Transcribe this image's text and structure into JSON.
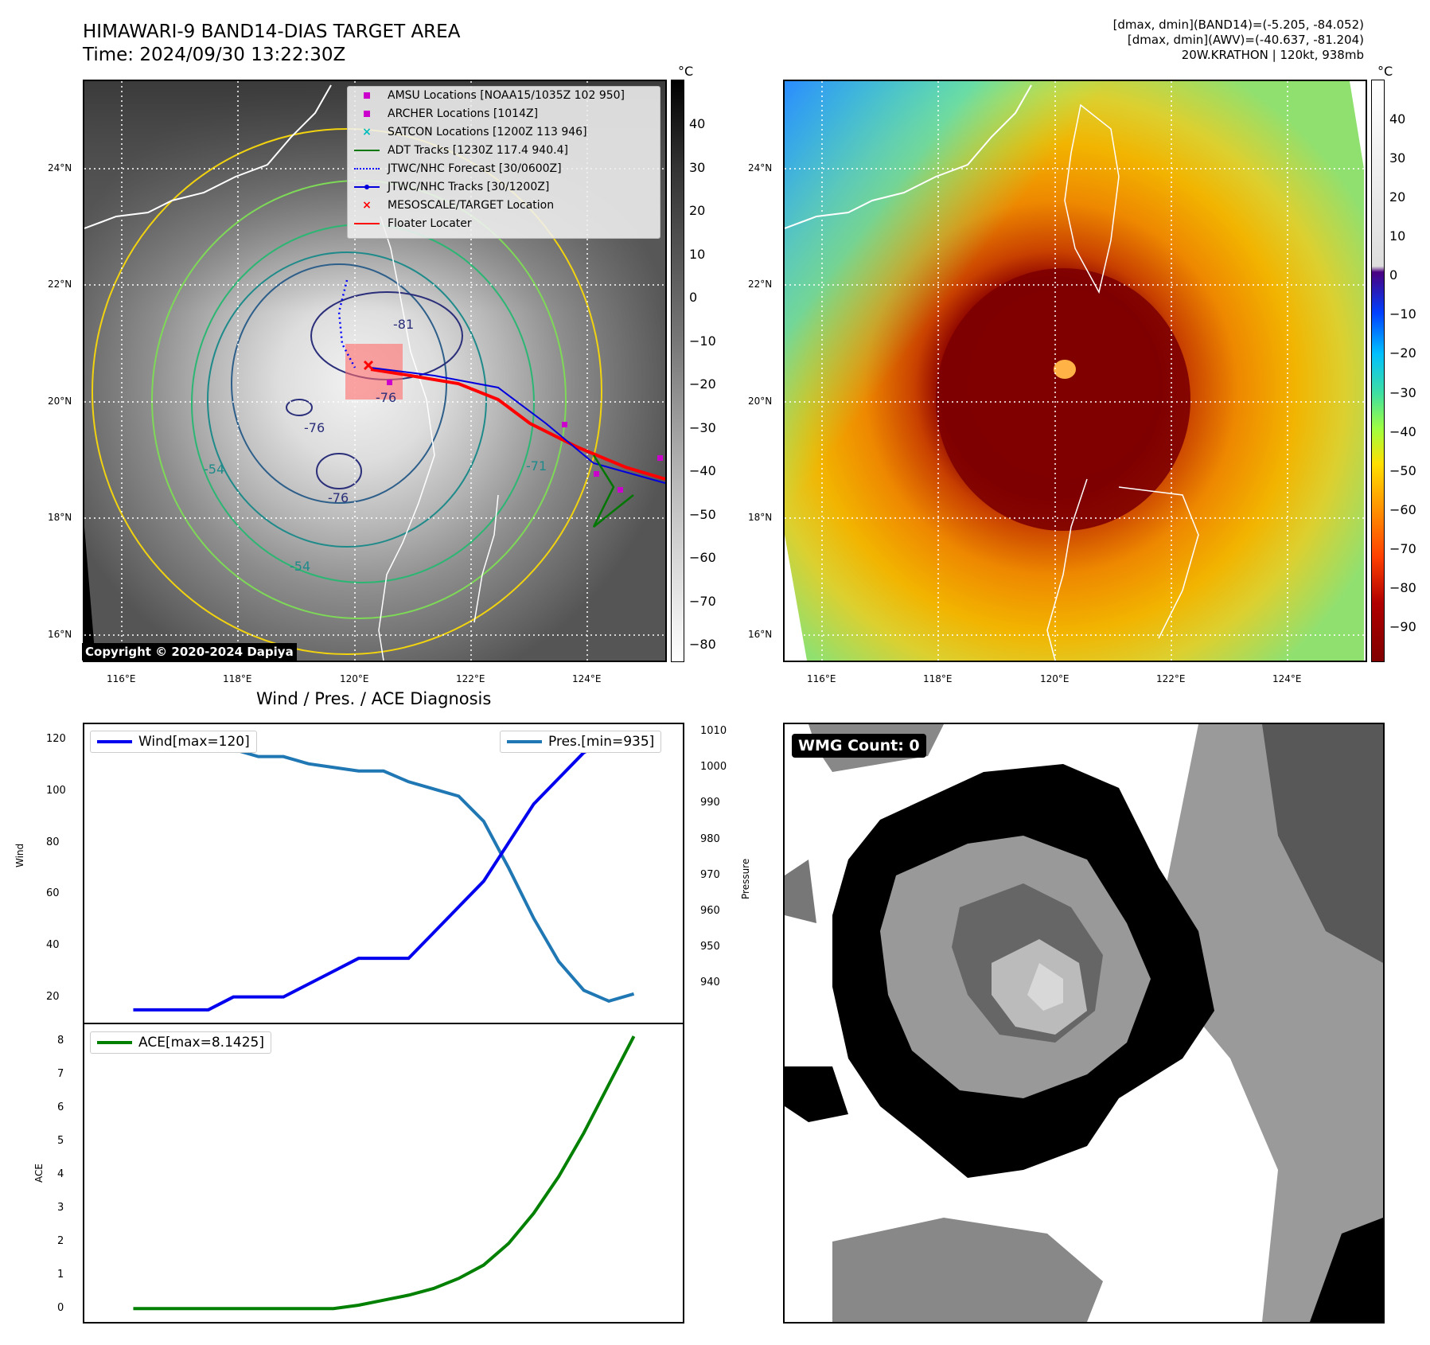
{
  "header": {
    "title_line1": "HIMAWARI-9 BAND14-DIAS TARGET AREA",
    "title_line2": "Time: 2024/09/30 13:22:30Z",
    "info_line1": "[dmax, dmin](BAND14)=(-5.205, -84.052)",
    "info_line2": "[dmax, dmin](AWV)=(-40.637, -81.204)",
    "info_line3": "20W.KRATHON | 120kt, 938mb"
  },
  "map": {
    "lat_labels": [
      "24°N",
      "22°N",
      "20°N",
      "18°N",
      "16°N"
    ],
    "lon_labels": [
      "116°E",
      "118°E",
      "120°E",
      "122°E",
      "124°E"
    ],
    "unit": "°C",
    "copyright": "Copyright © 2020-2024 Dapiya",
    "contour_labels": [
      "-81",
      "-76",
      "-76",
      "-76",
      "-54",
      "-54",
      "-71"
    ],
    "left_colorbar_ticks": [
      "40",
      "30",
      "20",
      "10",
      "0",
      "−10",
      "−20",
      "−30",
      "−40",
      "−50",
      "−60",
      "−70",
      "−80"
    ],
    "right_colorbar_ticks": [
      "40",
      "30",
      "20",
      "10",
      "0",
      "−10",
      "−20",
      "−30",
      "−40",
      "−50",
      "−60",
      "−70",
      "−80",
      "−90"
    ]
  },
  "legend": {
    "items": [
      {
        "label": "AMSU Locations [NOAA15/1035Z 102 950]",
        "color": "#cc00cc",
        "symbol": "square"
      },
      {
        "label": "ARCHER Locations [1014Z]",
        "color": "#cc00cc",
        "symbol": "square"
      },
      {
        "label": "SATCON Locations [1200Z 113 946]",
        "color": "#00bbbb",
        "symbol": "x"
      },
      {
        "label": "ADT Tracks [1230Z 117.4 940.4]",
        "color": "#007700",
        "symbol": "line"
      },
      {
        "label": "JTWC/NHC Forecast [30/0600Z]",
        "color": "#0000ff",
        "symbol": "dotted"
      },
      {
        "label": "JTWC/NHC Tracks [30/1200Z]",
        "color": "#0000dd",
        "symbol": "line-dot"
      },
      {
        "label": "MESOSCALE/TARGET Location",
        "color": "#ff0000",
        "symbol": "x"
      },
      {
        "label": "Floater Locater",
        "color": "#ff0000",
        "symbol": "line"
      }
    ]
  },
  "diagnosis": {
    "title": "Wind / Pres. / ACE Diagnosis",
    "wind_legend": "Wind[max=120]",
    "pres_legend": "Pres.[min=935]",
    "ace_legend": "ACE[max=8.1425]",
    "wind_ylabel": "Wind",
    "pres_ylabel": "Pressure",
    "ace_ylabel": "ACE"
  },
  "wmg": {
    "label": "WMG Count: 0"
  },
  "chart_data": [
    {
      "type": "line",
      "series": [
        {
          "name": "Wind[max=120]",
          "color": "#0000ee",
          "values": [
            15,
            15,
            15,
            15,
            20,
            20,
            20,
            25,
            30,
            35,
            35,
            35,
            45,
            55,
            65,
            80,
            95,
            105,
            115,
            120,
            120
          ]
        },
        {
          "name": "Pres.[min=935]",
          "color": "#1f77b4",
          "values": [
            1008,
            1008,
            1008,
            1005,
            1005,
            1003,
            1003,
            1001,
            1000,
            999,
            999,
            996,
            994,
            992,
            985,
            972,
            958,
            946,
            938,
            935,
            937
          ]
        }
      ],
      "x": [
        0,
        1,
        2,
        3,
        4,
        5,
        6,
        7,
        8,
        9,
        10,
        11,
        12,
        13,
        14,
        15,
        16,
        17,
        18,
        19,
        20
      ],
      "wind_yticks": [
        20,
        40,
        60,
        80,
        100,
        120
      ],
      "wind_ylim": [
        10,
        126
      ],
      "pres_yticks": [
        940,
        950,
        960,
        970,
        980,
        990,
        1000,
        1010
      ],
      "pres_ylim": [
        929,
        1012
      ],
      "legend": "top"
    },
    {
      "type": "line",
      "series": [
        {
          "name": "ACE[max=8.1425]",
          "color": "#008000",
          "values": [
            0,
            0,
            0,
            0,
            0,
            0,
            0,
            0,
            0,
            0.1,
            0.25,
            0.4,
            0.6,
            0.9,
            1.3,
            1.95,
            2.85,
            3.95,
            5.25,
            6.7,
            8.1425
          ]
        }
      ],
      "x": [
        0,
        1,
        2,
        3,
        4,
        5,
        6,
        7,
        8,
        9,
        10,
        11,
        12,
        13,
        14,
        15,
        16,
        17,
        18,
        19,
        20
      ],
      "yticks": [
        0,
        1,
        2,
        3,
        4,
        5,
        6,
        7,
        8
      ],
      "ylim": [
        -0.4,
        8.5
      ],
      "legend": "top-left"
    }
  ]
}
